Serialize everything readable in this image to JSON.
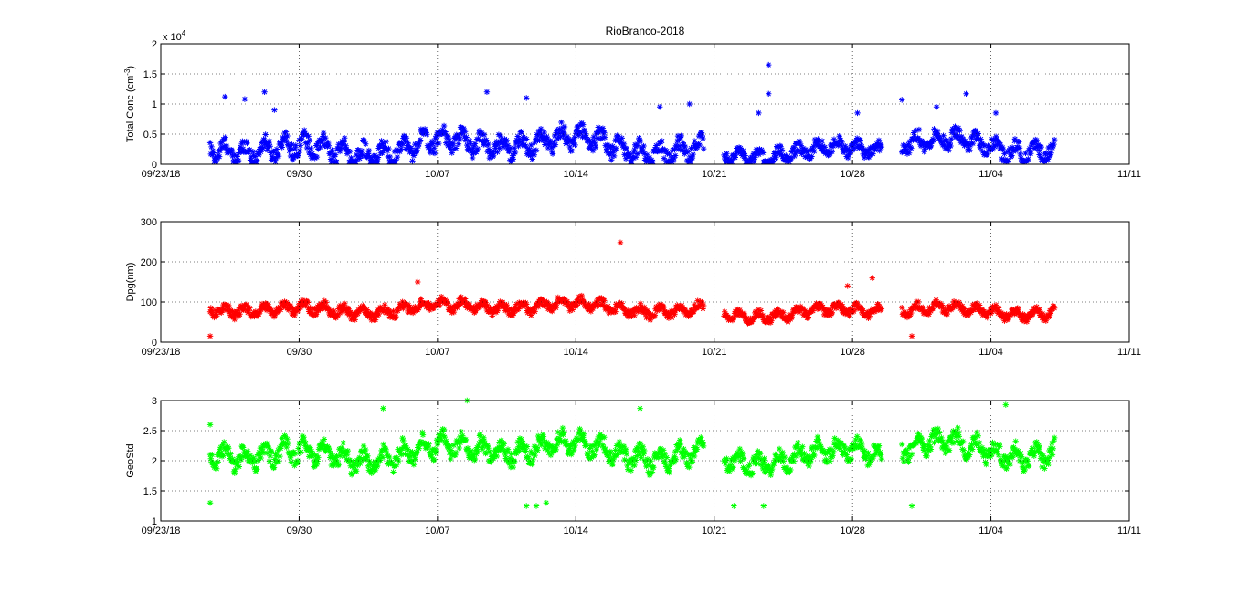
{
  "figure": {
    "title": "RioBranco-2018"
  },
  "chart_data": [
    {
      "type": "scatter",
      "marker": "*",
      "color": "#0000ff",
      "ylabel": "Total Conc (cm",
      "ylabel_sup": "-3",
      "ylabel_end": ")",
      "exponent_label": "x 10",
      "exponent_sup": "4",
      "ylim": [
        0,
        2
      ],
      "yticks": [
        0,
        0.5,
        1,
        1.5,
        2
      ],
      "ytick_labels": [
        "0",
        "0.5",
        "1",
        "1.5",
        "2"
      ],
      "xlim": [
        "2018-09-23",
        "2018-11-11"
      ],
      "xticks": [
        "2018-09-23",
        "2018-09-30",
        "2018-10-07",
        "2018-10-14",
        "2018-10-21",
        "2018-10-28",
        "2018-11-04",
        "2018-11-11"
      ],
      "xtick_labels": [
        "09/23/18",
        "09/30",
        "10/07",
        "10/14",
        "10/21",
        "10/28",
        "11/04",
        "11/11"
      ],
      "grid": true,
      "segments": [
        {
          "x": [
            "2018-09-25 12:00",
            "2018-10-20 12:00"
          ],
          "base": 0.3,
          "amp": 0.28,
          "lo": 0.04,
          "hi": 1.2
        },
        {
          "x": [
            "2018-10-21 12:00",
            "2018-10-29 12:00"
          ],
          "base": 0.22,
          "amp": 0.2,
          "lo": 0.04,
          "hi": 0.9
        },
        {
          "x": [
            "2018-10-30 12:00",
            "2018-11-07 06:00"
          ],
          "base": 0.28,
          "amp": 0.25,
          "lo": 0.05,
          "hi": 1.2
        }
      ],
      "peaks": [
        {
          "x": "2018-09-26 06:00",
          "y": 1.12
        },
        {
          "x": "2018-09-27 06:00",
          "y": 1.08
        },
        {
          "x": "2018-09-28 06:00",
          "y": 1.2
        },
        {
          "x": "2018-09-28 18:00",
          "y": 0.9
        },
        {
          "x": "2018-10-09 12:00",
          "y": 1.2
        },
        {
          "x": "2018-10-11 12:00",
          "y": 1.1
        },
        {
          "x": "2018-10-18 06:00",
          "y": 0.95
        },
        {
          "x": "2018-10-19 18:00",
          "y": 1.0
        },
        {
          "x": "2018-10-23 06:00",
          "y": 0.85
        },
        {
          "x": "2018-10-23 18:00",
          "y": 1.65
        },
        {
          "x": "2018-10-23 18:00",
          "y": 1.17
        },
        {
          "x": "2018-10-28 06:00",
          "y": 0.85
        },
        {
          "x": "2018-10-30 12:00",
          "y": 1.07
        },
        {
          "x": "2018-11-01 06:00",
          "y": 0.95
        },
        {
          "x": "2018-11-02 18:00",
          "y": 1.17
        },
        {
          "x": "2018-11-04 06:00",
          "y": 0.85
        }
      ]
    },
    {
      "type": "scatter",
      "marker": "*",
      "color": "#ff0000",
      "ylabel": "Dpg(nm)",
      "ylim": [
        0,
        300
      ],
      "yticks": [
        0,
        100,
        200,
        300
      ],
      "ytick_labels": [
        "0",
        "100",
        "200",
        "300"
      ],
      "xlim": [
        "2018-09-23",
        "2018-11-11"
      ],
      "xticks": [
        "2018-09-23",
        "2018-09-30",
        "2018-10-07",
        "2018-10-14",
        "2018-10-21",
        "2018-10-28",
        "2018-11-04",
        "2018-11-11"
      ],
      "xtick_labels": [
        "09/23/18",
        "09/30",
        "10/07",
        "10/14",
        "10/21",
        "10/28",
        "11/04",
        "11/11"
      ],
      "grid": true,
      "segments": [
        {
          "x": [
            "2018-09-25 12:00",
            "2018-10-20 12:00"
          ],
          "base": 85,
          "amp": 22,
          "lo": 20,
          "hi": 140
        },
        {
          "x": [
            "2018-10-21 12:00",
            "2018-10-29 12:00"
          ],
          "base": 75,
          "amp": 20,
          "lo": 20,
          "hi": 160
        },
        {
          "x": [
            "2018-10-30 12:00",
            "2018-11-07 06:00"
          ],
          "base": 75,
          "amp": 20,
          "lo": 20,
          "hi": 125
        }
      ],
      "peaks": [
        {
          "x": "2018-10-16 06:00",
          "y": 248
        },
        {
          "x": "2018-10-06 00:00",
          "y": 150
        },
        {
          "x": "2018-09-25 12:00",
          "y": 15
        },
        {
          "x": "2018-10-31 00:00",
          "y": 15
        },
        {
          "x": "2018-10-27 18:00",
          "y": 140
        },
        {
          "x": "2018-10-29 00:00",
          "y": 160
        }
      ]
    },
    {
      "type": "scatter",
      "marker": "*",
      "color": "#00ff00",
      "ylabel": "GeoStd",
      "ylim": [
        1,
        3
      ],
      "yticks": [
        1,
        1.5,
        2,
        2.5,
        3
      ],
      "ytick_labels": [
        "1",
        "1.5",
        "2",
        "2.5",
        "3"
      ],
      "xlim": [
        "2018-09-23",
        "2018-11-11"
      ],
      "xticks": [
        "2018-09-23",
        "2018-09-30",
        "2018-10-07",
        "2018-10-14",
        "2018-10-21",
        "2018-10-28",
        "2018-11-04",
        "2018-11-11"
      ],
      "xtick_labels": [
        "09/23/18",
        "09/30",
        "10/07",
        "10/14",
        "10/21",
        "10/28",
        "11/04",
        "11/11"
      ],
      "grid": true,
      "segments": [
        {
          "x": [
            "2018-09-25 12:00",
            "2018-10-20 12:00"
          ],
          "base": 2.15,
          "amp": 0.28,
          "lo": 1.5,
          "hi": 2.8
        },
        {
          "x": [
            "2018-10-21 12:00",
            "2018-10-29 12:00"
          ],
          "base": 2.1,
          "amp": 0.25,
          "lo": 1.5,
          "hi": 2.7
        },
        {
          "x": [
            "2018-10-30 12:00",
            "2018-11-07 06:00"
          ],
          "base": 2.15,
          "amp": 0.28,
          "lo": 1.6,
          "hi": 2.8
        }
      ],
      "peaks": [
        {
          "x": "2018-10-08 12:00",
          "y": 3.0
        },
        {
          "x": "2018-09-25 12:00",
          "y": 2.6
        },
        {
          "x": "2018-09-25 12:00",
          "y": 1.3
        },
        {
          "x": "2018-10-12 00:00",
          "y": 1.25
        },
        {
          "x": "2018-10-11 12:00",
          "y": 1.25
        },
        {
          "x": "2018-10-12 12:00",
          "y": 1.3
        },
        {
          "x": "2018-10-22 00:00",
          "y": 1.25
        },
        {
          "x": "2018-10-23 12:00",
          "y": 1.25
        },
        {
          "x": "2018-10-31 00:00",
          "y": 1.25
        },
        {
          "x": "2018-11-04 18:00",
          "y": 2.93
        },
        {
          "x": "2018-10-04 06:00",
          "y": 2.87
        },
        {
          "x": "2018-10-17 06:00",
          "y": 2.87
        }
      ]
    }
  ]
}
